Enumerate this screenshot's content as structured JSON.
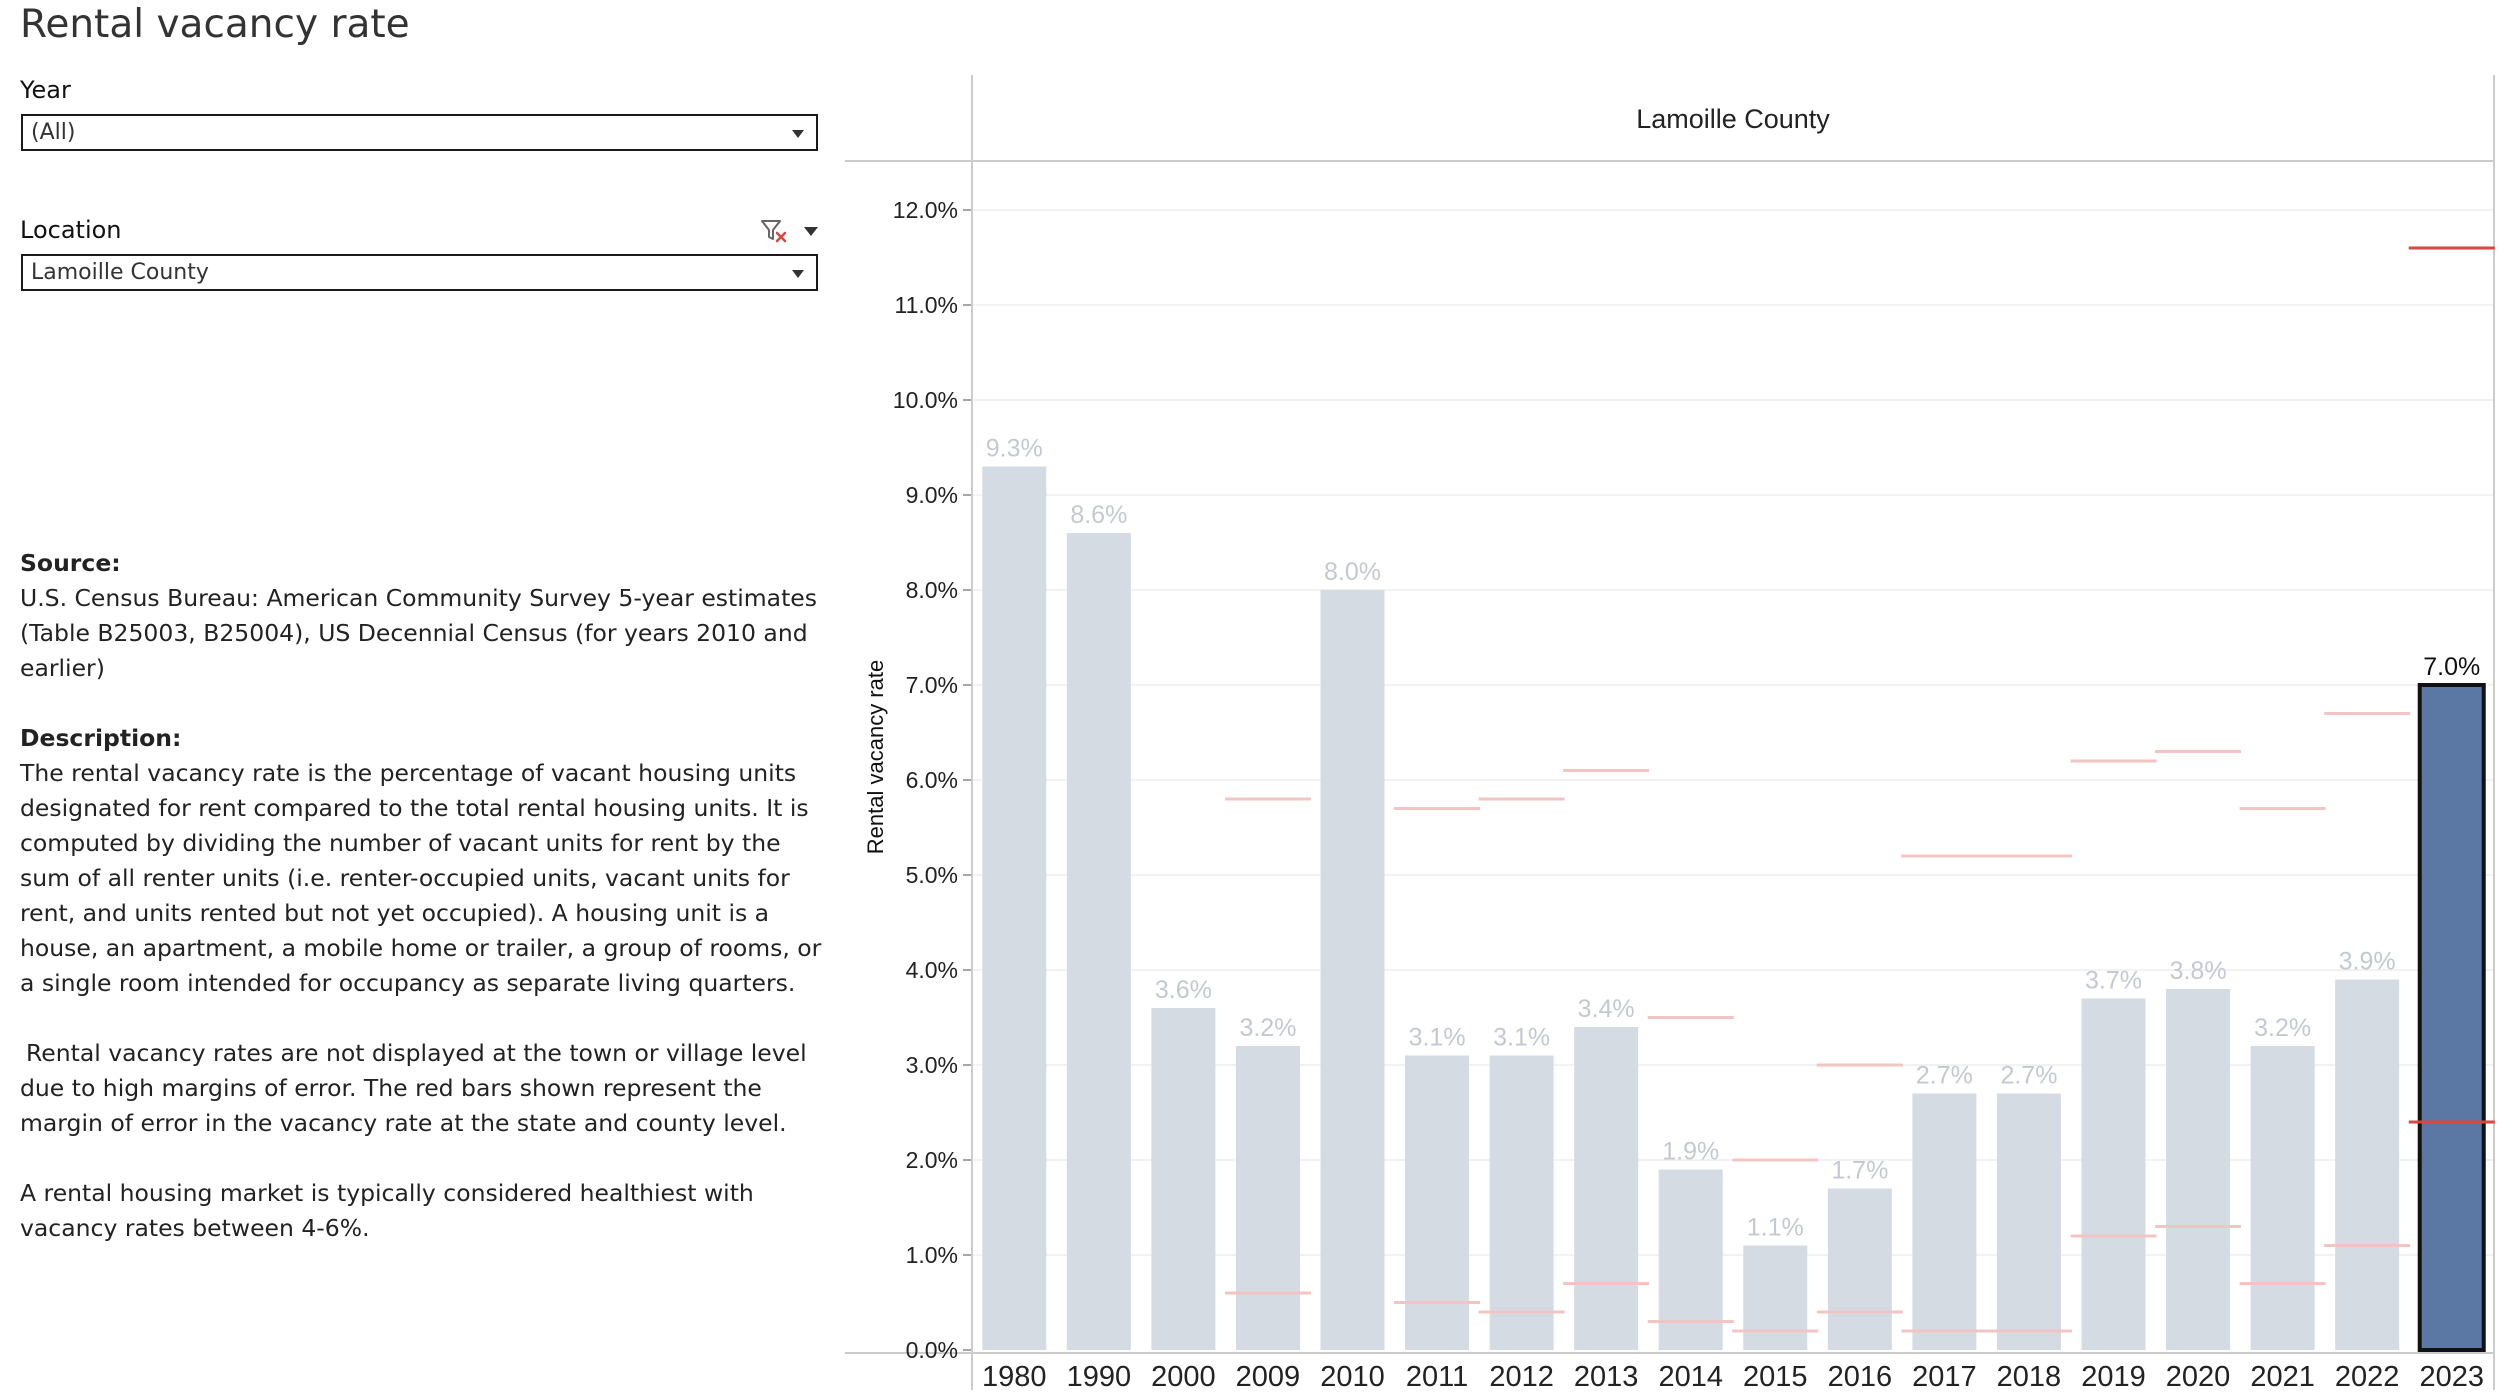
{
  "page": {
    "title": "Rental vacancy rate"
  },
  "filters": {
    "year": {
      "label": "Year",
      "value": "(All)"
    },
    "location": {
      "label": "Location",
      "value": "Lamoille County"
    }
  },
  "notes": {
    "source_heading": "Source:",
    "source_text": "U.S. Census Bureau: American Community Survey 5-year estimates (Table B25003, B25004), US Decennial Census (for years 2010 and earlier)",
    "description_heading": "Description:",
    "description_text": "The rental vacancy rate is the percentage of vacant housing units designated for rent compared to the total rental housing units. It is computed by dividing the number of vacant units for rent by the sum of all renter units (i.e. renter-occupied units, vacant units for rent, and units rented but not yet occupied). A housing unit is a house, an apartment, a mobile home or trailer, a group of rooms, or a single room intended for occupancy as separate living quarters.",
    "margin_note": "Rental vacancy rates are not displayed at the town or village level due to high margins of error. The red bars shown represent the margin of error in the vacancy rate at the state and county level.",
    "healthy_note": "A rental housing market is typically considered healthiest with vacancy rates between 4-6%."
  },
  "colors": {
    "bar_default": "#d5dbe3",
    "bar_selected": "#5b77a3",
    "bar_selected_outline": "#111111",
    "label_default": "#c4c9d1",
    "label_selected": "#111111",
    "error_line": "#f2c4c4",
    "error_line_selected": "#d9473f",
    "gridline": "#eeeeee",
    "axis": "#cccccc"
  },
  "chart_data": {
    "type": "bar",
    "title": "Lamoille County",
    "xlabel": "",
    "ylabel": "Rental vacancy rate",
    "ylim": [
      0,
      12.5
    ],
    "yticks": [
      "0.0%",
      "1.0%",
      "2.0%",
      "3.0%",
      "4.0%",
      "5.0%",
      "6.0%",
      "7.0%",
      "8.0%",
      "9.0%",
      "10.0%",
      "11.0%",
      "12.0%"
    ],
    "categories": [
      "1980",
      "1990",
      "2000",
      "2009",
      "2010",
      "2011",
      "2012",
      "2013",
      "2014",
      "2015",
      "2016",
      "2017",
      "2018",
      "2019",
      "2020",
      "2021",
      "2022",
      "2023"
    ],
    "values": [
      9.3,
      8.6,
      3.6,
      3.2,
      8.0,
      3.1,
      3.1,
      3.4,
      1.9,
      1.1,
      1.7,
      2.7,
      2.7,
      3.7,
      3.8,
      3.2,
      3.9,
      7.0
    ],
    "labels": [
      "9.3%",
      "8.6%",
      "3.6%",
      "3.2%",
      "8.0%",
      "3.1%",
      "3.1%",
      "3.4%",
      "1.9%",
      "1.1%",
      "1.7%",
      "2.7%",
      "2.7%",
      "3.7%",
      "3.8%",
      "3.2%",
      "3.9%",
      "7.0%"
    ],
    "margin_of_error_low": [
      null,
      null,
      null,
      0.6,
      null,
      0.5,
      0.4,
      0.7,
      0.3,
      0.2,
      0.4,
      0.2,
      0.2,
      1.2,
      1.3,
      0.7,
      1.1,
      2.4
    ],
    "margin_of_error_high": [
      null,
      null,
      null,
      5.8,
      null,
      5.7,
      5.8,
      6.1,
      3.5,
      2.0,
      3.0,
      5.2,
      5.2,
      6.2,
      6.3,
      5.7,
      6.7,
      11.6
    ],
    "selected_index": 17
  }
}
